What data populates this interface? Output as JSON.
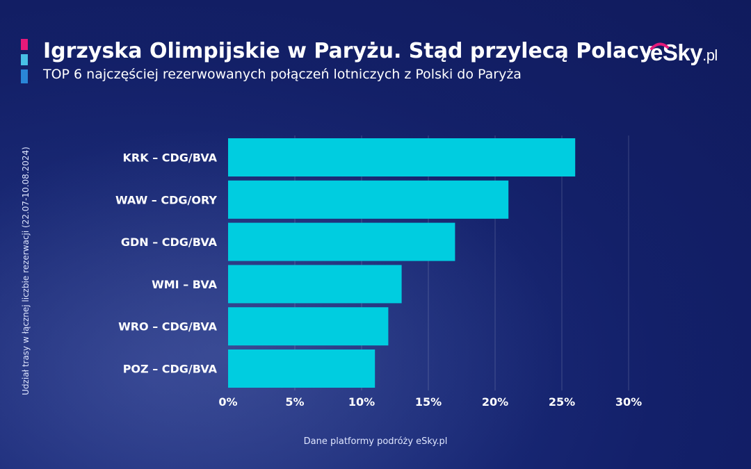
{
  "header": {
    "title": "Igrzyska Olimpijskie w Paryżu. Stąd przylecą Polacy",
    "subtitle": "TOP 6 najczęściej rezerwowanych połączeń lotniczych z Polski do Paryża",
    "logo_text": "eSky",
    "logo_suffix": ".pl"
  },
  "footer": {
    "source": "Dane platformy podróży eSky.pl"
  },
  "colors": {
    "bar": "#00cde0",
    "accent_pink": "#e6197a",
    "accent_cyan": "#48c0e6",
    "accent_blue": "#2a86d8",
    "background": "#15226c"
  },
  "chart_data": {
    "type": "bar",
    "orientation": "horizontal",
    "categories": [
      "KRK – CDG/BVA",
      "WAW – CDG/ORY",
      "GDN – CDG/BVA",
      "WMI – BVA",
      "WRO – CDG/BVA",
      "POZ – CDG/BVA"
    ],
    "values": [
      26,
      21,
      17,
      13,
      12,
      11
    ],
    "ylabel": "Udział trasy w łącznej liczbie rezerwacji (22.07-10.08.2024)",
    "xlim": [
      0,
      30
    ],
    "xticks": [
      0,
      5,
      10,
      15,
      20,
      25,
      30
    ],
    "xtick_labels": [
      "0%",
      "5%",
      "10%",
      "15%",
      "20%",
      "25%",
      "30%"
    ],
    "grid": "vertical",
    "legend": "none"
  }
}
